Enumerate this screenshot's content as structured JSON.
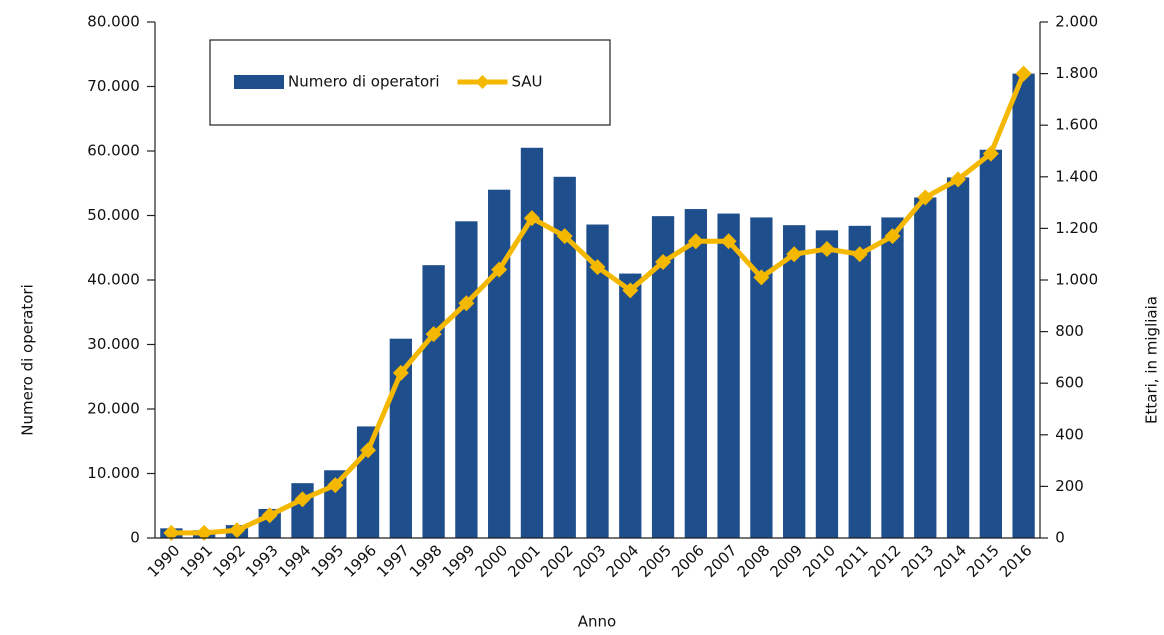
{
  "chart_data": {
    "type": "bar_line",
    "x_label": "Anno",
    "y_label": "Numero di operatori",
    "y2_label": "Ettari, in migliaia",
    "categories": [
      "1990",
      "1991",
      "1992",
      "1993",
      "1994",
      "1995",
      "1996",
      "1997",
      "1998",
      "1999",
      "2000",
      "2001",
      "2002",
      "2003",
      "2004",
      "2005",
      "2006",
      "2007",
      "2008",
      "2009",
      "2010",
      "2011",
      "2012",
      "2013",
      "2014",
      "2015",
      "2016"
    ],
    "series": [
      {
        "name": "Numero di operatori",
        "type": "bar",
        "color": "#1f4e8c",
        "values": [
          1500,
          1200,
          2000,
          4500,
          8500,
          10500,
          17300,
          30900,
          42300,
          49100,
          54000,
          60500,
          56000,
          48600,
          41000,
          49900,
          51000,
          50300,
          49700,
          48500,
          47700,
          48400,
          49700,
          52800,
          55900,
          60200,
          72000
        ]
      },
      {
        "name": "SAU",
        "type": "line",
        "axis": "y2",
        "color": "#f5b800",
        "values": [
          20,
          20,
          30,
          88,
          150,
          205,
          340,
          640,
          790,
          910,
          1040,
          1240,
          1170,
          1050,
          960,
          1070,
          1150,
          1150,
          1010,
          1100,
          1120,
          1100,
          1170,
          1320,
          1390,
          1490,
          1800
        ]
      }
    ],
    "ylim": [
      0,
      80000
    ],
    "yticks": [
      0,
      {
        "value": 10000,
        "label": "10.000"
      },
      {
        "value": 20000,
        "label": "20.000"
      },
      {
        "value": 30000,
        "label": "30.000"
      },
      {
        "value": 40000,
        "label": "40.000"
      },
      {
        "value": 50000,
        "label": "50.000"
      },
      {
        "value": 60000,
        "label": "60.000"
      },
      {
        "value": 70000,
        "label": "70.000"
      },
      {
        "value": 80000,
        "label": "80.000"
      }
    ],
    "y2lim": [
      0,
      2000
    ],
    "y2ticks": [
      0,
      200,
      400,
      600,
      800,
      {
        "value": 1000,
        "label": "1.000"
      },
      {
        "value": 1200,
        "label": "1.200"
      },
      {
        "value": 1400,
        "label": "1.400"
      },
      {
        "value": 1600,
        "label": "1.600"
      },
      {
        "value": 1800,
        "label": "1.800"
      },
      {
        "value": 2000,
        "label": "2.000"
      }
    ],
    "legend": "top-left"
  }
}
